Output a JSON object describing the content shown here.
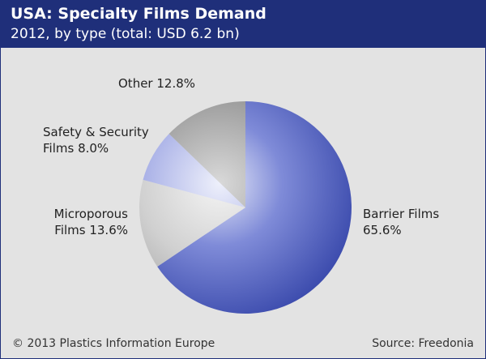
{
  "header": {
    "title": "USA: Specialty Films Demand",
    "subtitle": "2012, by type (total: USD 6.2 bn)"
  },
  "footer": {
    "copyright": "© 2013 Plastics Information Europe",
    "source": "Source: Freedonia"
  },
  "colors": {
    "header_bg": "#1f2f7a",
    "background": "#e3e3e3",
    "barrier": "#24359f",
    "microporous": "#bdbdbd",
    "safety": "#8e97da",
    "other": "#7a7a7a"
  },
  "chart_data": {
    "type": "pie",
    "title": "USA: Specialty Films Demand",
    "subtitle": "2012, by type (total: USD 6.2 bn)",
    "unit": "%",
    "slices": [
      {
        "key": "barrier",
        "label_lines": [
          "Barrier Films",
          "65.6%"
        ],
        "value": 65.6
      },
      {
        "key": "microporous",
        "label_lines": [
          "Microporous",
          "Films 13.6%"
        ],
        "value": 13.6
      },
      {
        "key": "safety",
        "label_lines": [
          "Safety & Security",
          "Films 8.0%"
        ],
        "value": 8.0
      },
      {
        "key": "other",
        "label_lines": [
          "Other 12.8%"
        ],
        "value": 12.8
      }
    ]
  }
}
